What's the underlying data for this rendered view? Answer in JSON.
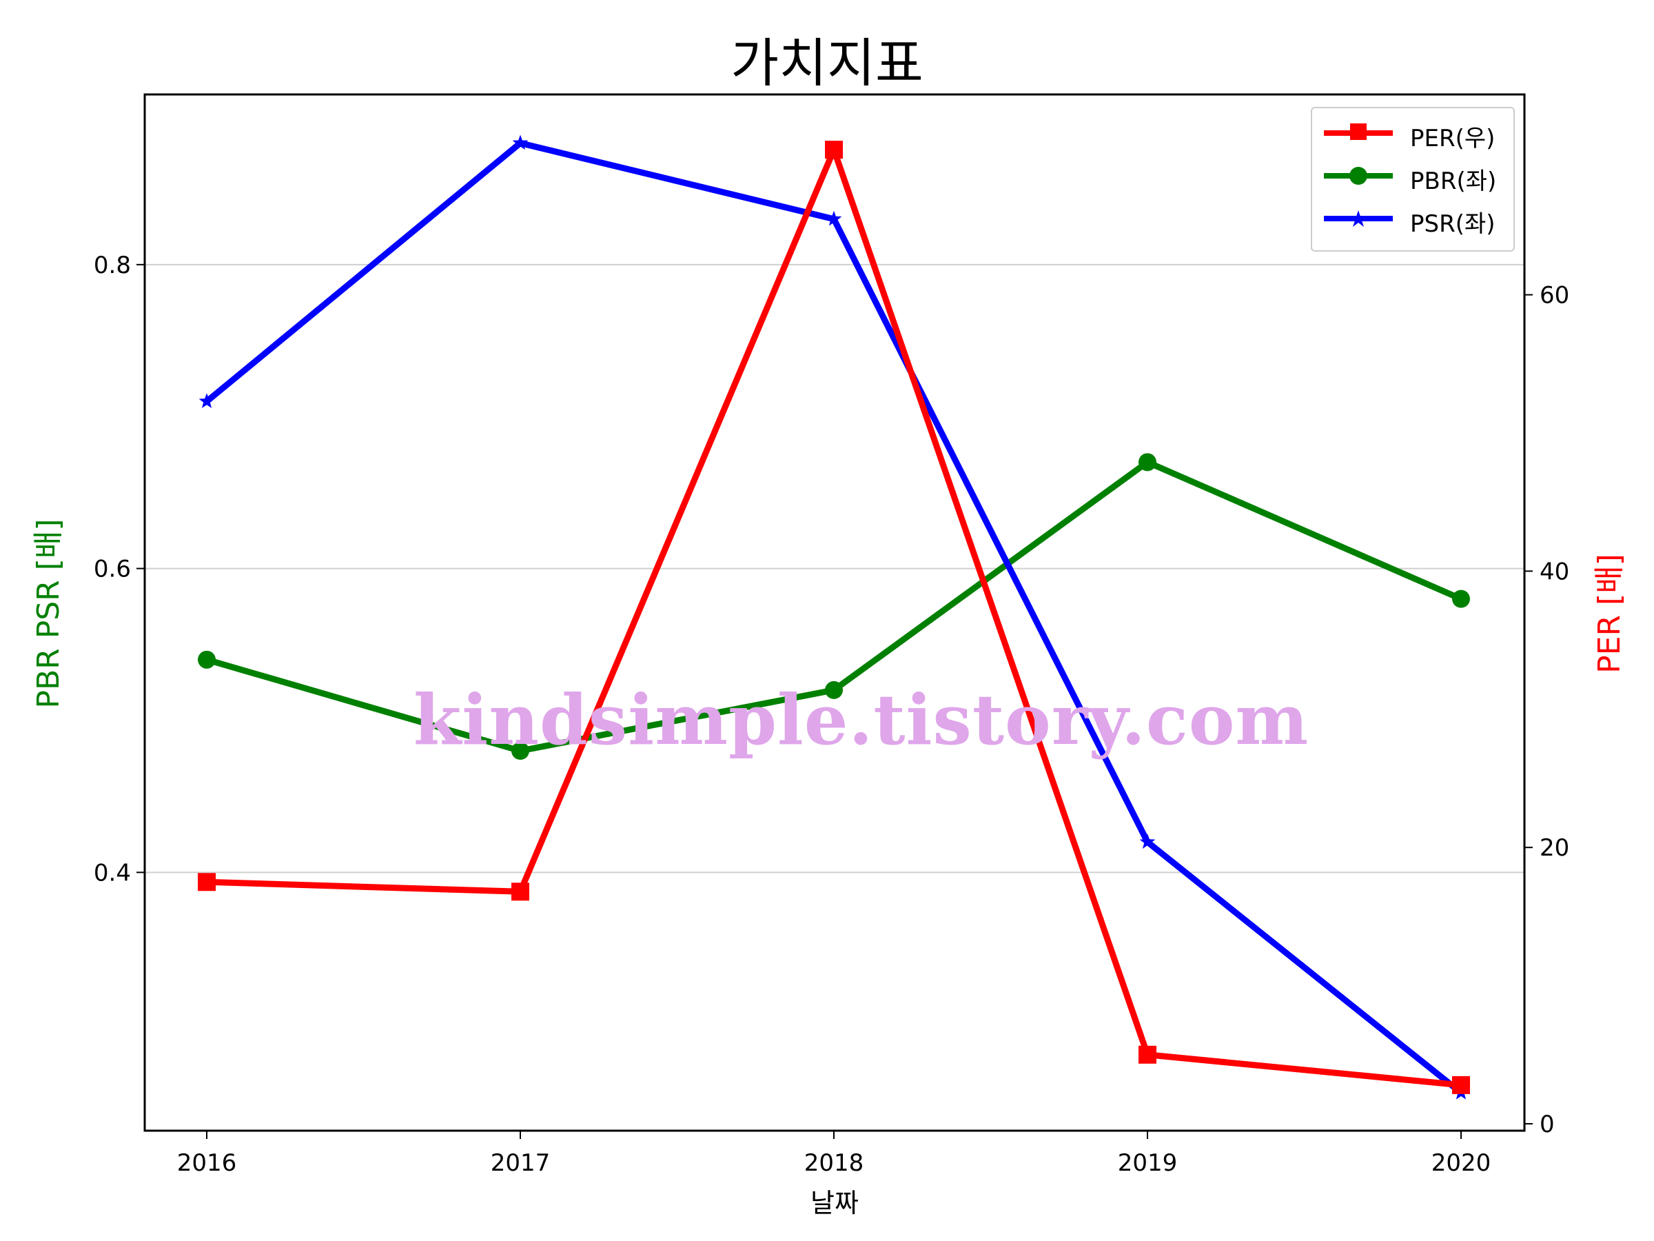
{
  "title": "가치지표",
  "watermark": "kindsimple.tistory.com",
  "chart_data": {
    "type": "line",
    "title": "가치지표",
    "xlabel": "날짜",
    "ylabel_left": "PBR PSR [배]",
    "ylabel_right": "PER [배]",
    "categories": [
      "2016",
      "2017",
      "2018",
      "2019",
      "2020"
    ],
    "left_axis": {
      "ylim": [
        0.23,
        0.912
      ],
      "ticks": [
        "0.4",
        "0.6",
        "0.8"
      ],
      "tick_values": [
        0.4,
        0.6,
        0.8
      ]
    },
    "right_axis": {
      "ylim": [
        -0.5,
        74.5
      ],
      "ticks": [
        "0",
        "20",
        "40",
        "60"
      ],
      "tick_values": [
        0,
        20,
        40,
        60
      ]
    },
    "grid": "horizontal (left axis)",
    "legend_position": "top-right",
    "series": [
      {
        "name": "PER(우)",
        "axis": "right",
        "color": "#ff0000",
        "marker": "square",
        "values": [
          17.5,
          16.8,
          70.5,
          5.0,
          2.8
        ]
      },
      {
        "name": "PBR(좌)",
        "axis": "left",
        "color": "#008000",
        "marker": "circle",
        "values": [
          0.54,
          0.48,
          0.52,
          0.67,
          0.58
        ]
      },
      {
        "name": "PSR(좌)",
        "axis": "left",
        "color": "#0000ff",
        "marker": "star",
        "values": [
          0.71,
          0.88,
          0.83,
          0.42,
          0.255
        ]
      }
    ]
  }
}
